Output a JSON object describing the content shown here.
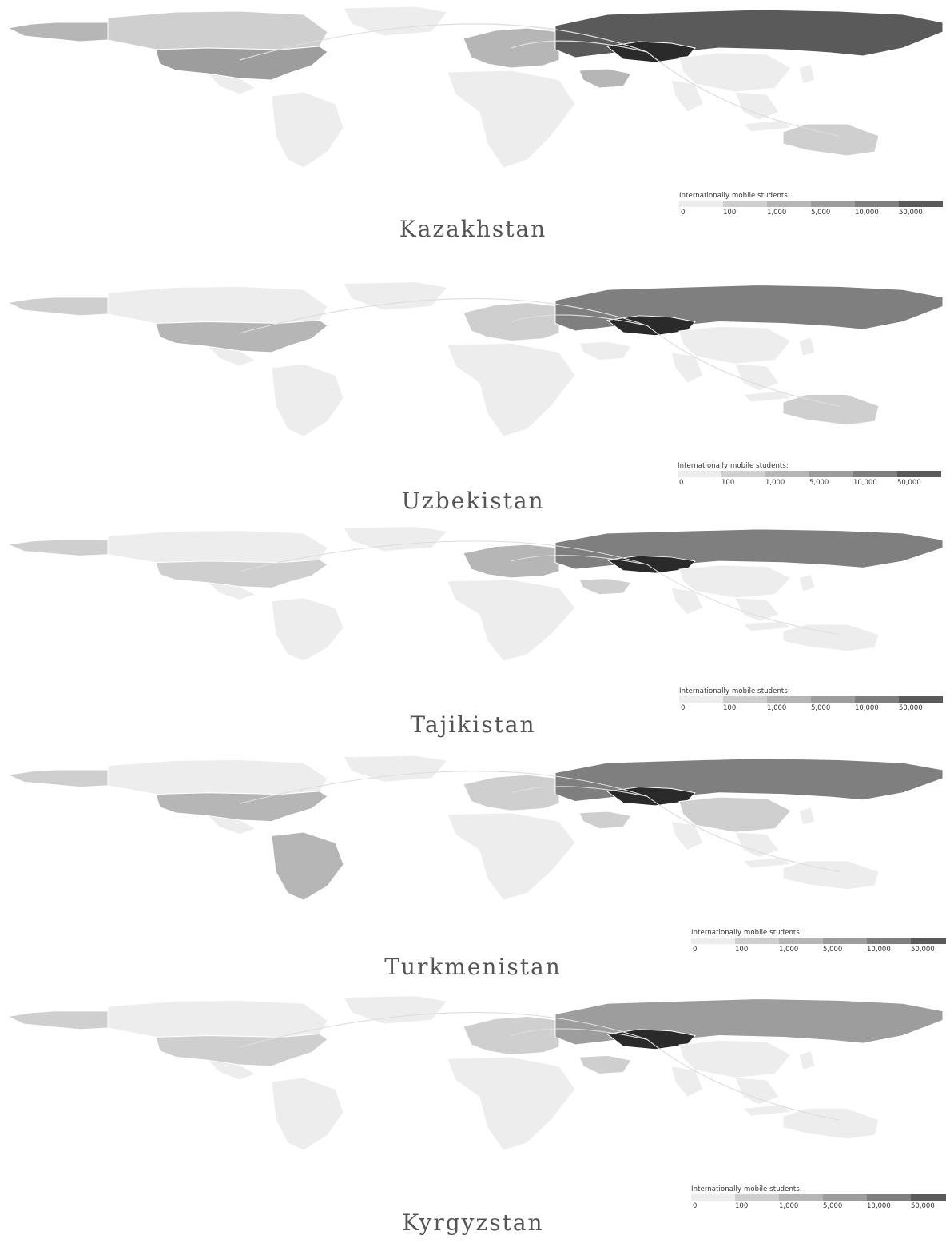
{
  "legend": {
    "title": "Internationally mobile students:",
    "ticks": [
      "0",
      "100",
      "1,000",
      "5,000",
      "10,000",
      "50,000"
    ],
    "colors": [
      "#ededed",
      "#cfcfcf",
      "#b6b6b6",
      "#9d9d9d",
      "#7f7f7f",
      "#5a5a5a"
    ]
  },
  "panels": [
    {
      "caption": "Kazakhstan",
      "levels": {
        "north_america_west": 2,
        "canada": 1,
        "usa": 3,
        "europe": 2,
        "russia": 5,
        "origin": 6,
        "middle_east": 2,
        "australia": 1,
        "china": 0,
        "brazil": 0
      }
    },
    {
      "caption": "Uzbekistan",
      "levels": {
        "north_america_west": 1,
        "canada": 0,
        "usa": 2,
        "europe": 1,
        "russia": 4,
        "origin": 6,
        "middle_east": 0,
        "australia": 1,
        "china": 0,
        "brazil": 0
      }
    },
    {
      "caption": "Tajikistan",
      "levels": {
        "north_america_west": 1,
        "canada": 0,
        "usa": 1,
        "europe": 2,
        "russia": 4,
        "origin": 6,
        "middle_east": 1,
        "australia": 0,
        "china": 0,
        "brazil": 0
      }
    },
    {
      "caption": "Turkmenistan",
      "levels": {
        "north_america_west": 1,
        "canada": 0,
        "usa": 2,
        "europe": 1,
        "russia": 4,
        "origin": 6,
        "middle_east": 1,
        "australia": 0,
        "china": 1,
        "brazil": 2
      }
    },
    {
      "caption": "Kyrgyzstan",
      "levels": {
        "north_america_west": 1,
        "canada": 0,
        "usa": 1,
        "europe": 1,
        "russia": 3,
        "origin": 6,
        "middle_east": 1,
        "australia": 0,
        "china": 0,
        "brazil": 0
      }
    }
  ]
}
